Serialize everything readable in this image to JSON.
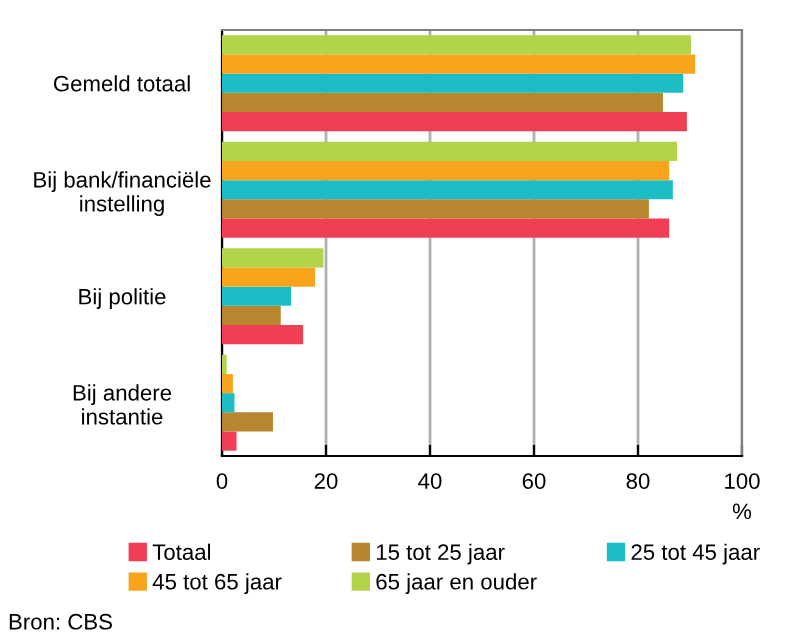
{
  "chart_data": {
    "type": "bar",
    "orientation": "horizontal",
    "categories": [
      "Gemeld totaal",
      "Bij bank/financiële\ninstelling",
      "Bij politie",
      "Bij andere\ninstantie"
    ],
    "series": [
      {
        "name": "Totaal",
        "color": "#f03f55",
        "values": [
          89.4,
          86.0,
          15.6,
          2.8
        ]
      },
      {
        "name": "15 tot 25 jaar",
        "color": "#b8862f",
        "values": [
          84.8,
          82.1,
          11.3,
          9.8
        ]
      },
      {
        "name": "25 tot 45 jaar",
        "color": "#1dbdc6",
        "values": [
          88.7,
          86.7,
          13.3,
          2.4
        ]
      },
      {
        "name": "45 tot 65 jaar",
        "color": "#f8a51d",
        "values": [
          91.0,
          86.0,
          17.9,
          2.1
        ]
      },
      {
        "name": "65 jaar en ouder",
        "color": "#b2d44a",
        "values": [
          90.2,
          87.5,
          19.5,
          0.9
        ]
      }
    ],
    "xlabel": "%",
    "xlim": [
      0,
      100
    ],
    "xticks": [
      0,
      20,
      40,
      60,
      80,
      100
    ],
    "grid": "x",
    "legend": "bottom",
    "annotations": [
      "Bron: CBS"
    ]
  }
}
